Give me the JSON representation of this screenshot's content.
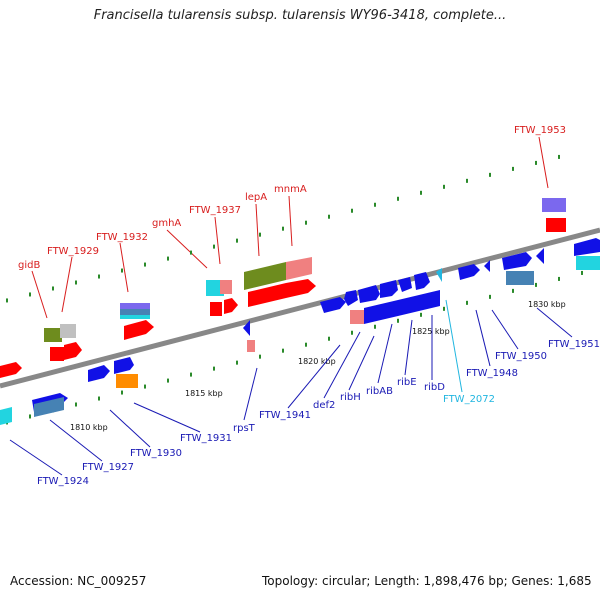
{
  "title": "Francisella tularensis subsp. tularensis WY96-3418, complete...",
  "footer": {
    "accession": "Accession: NC_009257",
    "stats": "Topology: circular; Length: 1,898,476 bp; Genes: 1,685"
  },
  "colors": {
    "axis": "#888888",
    "tick": "#2a8a2a",
    "upper_label": "#d81e1e",
    "lower_label": "#1a1ab4",
    "cyan_label": "#22b6e0",
    "gene_red": "#ff0000",
    "gene_blue": "#1111e6",
    "gene_pink": "#f08080",
    "gene_olive": "#6e8c1e",
    "gene_cyan": "#22d4e0",
    "gene_orange": "#ff8c00",
    "gene_steel": "#4682b4",
    "gene_purple": "#7b68ee",
    "gene_gray": "#c0c0c0"
  },
  "scale_ticks": [
    "1810 kbp",
    "1815 kbp",
    "1820 kbp",
    "1825 kbp",
    "1830 kbp"
  ],
  "upper_labels": [
    "gidB",
    "FTW_1929",
    "FTW_1932",
    "gmhA",
    "FTW_1937",
    "lepA",
    "mnmA",
    "FTW_1953"
  ],
  "lower_labels": [
    "FTW_1924",
    "FTW_1927",
    "FTW_1930",
    "FTW_1931",
    "rpsT",
    "FTW_1941",
    "def2",
    "ribH",
    "ribAB",
    "ribE",
    "ribD",
    "FTW_2072",
    "FTW_1948",
    "FTW_1950",
    "FTW_1951"
  ]
}
